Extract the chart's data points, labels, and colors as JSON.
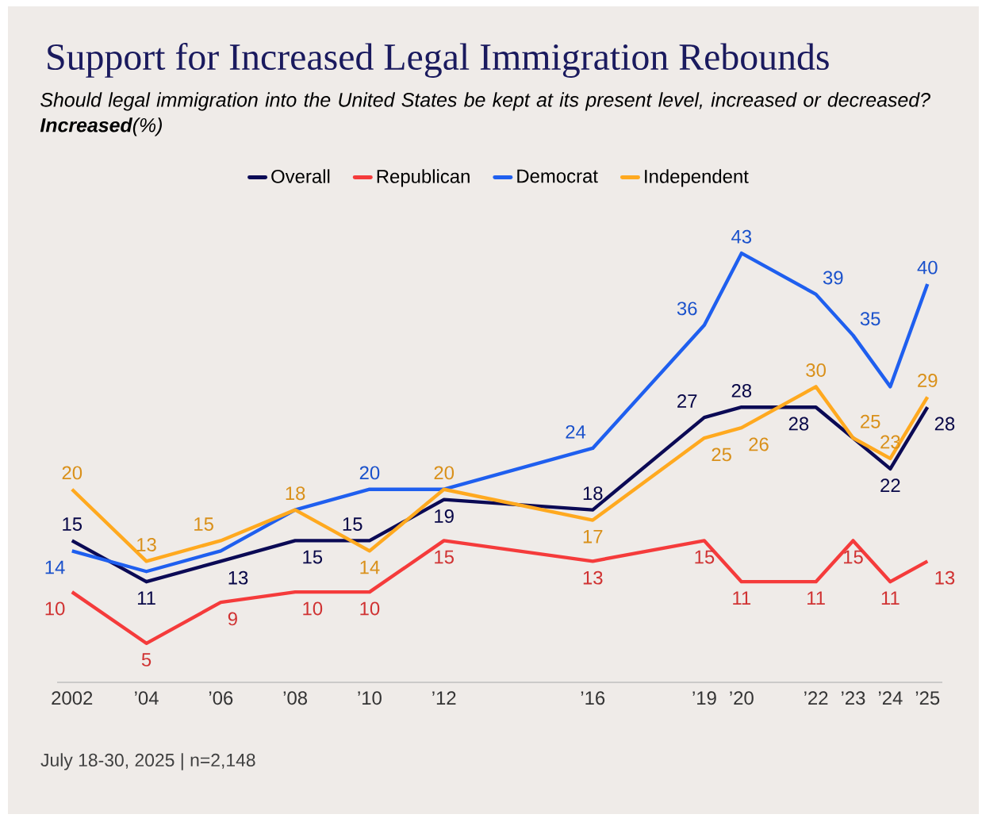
{
  "chart_data": {
    "type": "line",
    "title": "Support for Increased Legal Immigration Rebounds",
    "subtitle": "Should legal immigration into the United States be kept at its present level, increased or decreased? **Increased**(%)",
    "x": [
      2002,
      2004,
      2006,
      2008,
      2010,
      2012,
      2016,
      2019,
      2020,
      2022,
      2023,
      2024,
      2025
    ],
    "series": [
      {
        "name": "Overall",
        "color": "#0b0a55",
        "x": [
          2002,
          2004,
          2006,
          2008,
          2010,
          2012,
          2016,
          2019,
          2020,
          2022,
          2024,
          2025
        ],
        "values": [
          15,
          11,
          13,
          15,
          15,
          19,
          18,
          27,
          28,
          28,
          22,
          28
        ],
        "value_labels": [
          "15",
          "11",
          "13",
          "15",
          "15",
          "19",
          "18",
          "27",
          "28",
          "28",
          "22",
          "28"
        ]
      },
      {
        "name": "Republican",
        "color": "#f53b3b",
        "values": [
          10,
          5,
          9,
          10,
          10,
          15,
          13,
          15,
          11,
          11,
          15,
          11,
          13
        ],
        "value_labels": [
          "10",
          "5",
          "9",
          "10",
          "10",
          "15",
          "13",
          "15",
          "11",
          "11",
          "15",
          "11",
          "13"
        ]
      },
      {
        "name": "Democrat",
        "color": "#1f5fef",
        "values": [
          14,
          12,
          14,
          18,
          20,
          20,
          24,
          36,
          43,
          39,
          35,
          30,
          40
        ],
        "value_labels": [
          "14",
          null,
          null,
          null,
          "20",
          null,
          "24",
          "36",
          "43",
          "39",
          "35",
          null,
          "40"
        ]
      },
      {
        "name": "Independent",
        "color": "#ffa91f",
        "values": [
          20,
          13,
          15,
          18,
          14,
          20,
          17,
          25,
          26,
          30,
          25,
          23,
          29
        ],
        "value_labels": [
          "20",
          "13",
          "15",
          "18",
          "14",
          "20",
          "17",
          "25",
          "26",
          "30",
          "25",
          "23",
          "29"
        ]
      }
    ],
    "xlim": [
      2001.6,
      2025.4
    ],
    "xticks": [
      {
        "value": 2002,
        "label": "2002"
      },
      {
        "value": 2004,
        "label": "’04"
      },
      {
        "value": 2006,
        "label": "’06"
      },
      {
        "value": 2008,
        "label": "’08"
      },
      {
        "value": 2010,
        "label": "’10"
      },
      {
        "value": 2012,
        "label": "’12"
      },
      {
        "value": 2016,
        "label": "’16"
      },
      {
        "value": 2019,
        "label": "’19"
      },
      {
        "value": 2020,
        "label": "’20"
      },
      {
        "value": 2022,
        "label": "’22"
      },
      {
        "value": 2023,
        "label": "’23"
      },
      {
        "value": 2024,
        "label": "’24"
      },
      {
        "value": 2025,
        "label": "’25"
      }
    ],
    "tick_labels": "x",
    "grid": false,
    "legend": "top",
    "marker": "none",
    "line_style": "solid",
    "annotations": [
      "July 18-30, 2025 | n=2,148"
    ]
  }
}
